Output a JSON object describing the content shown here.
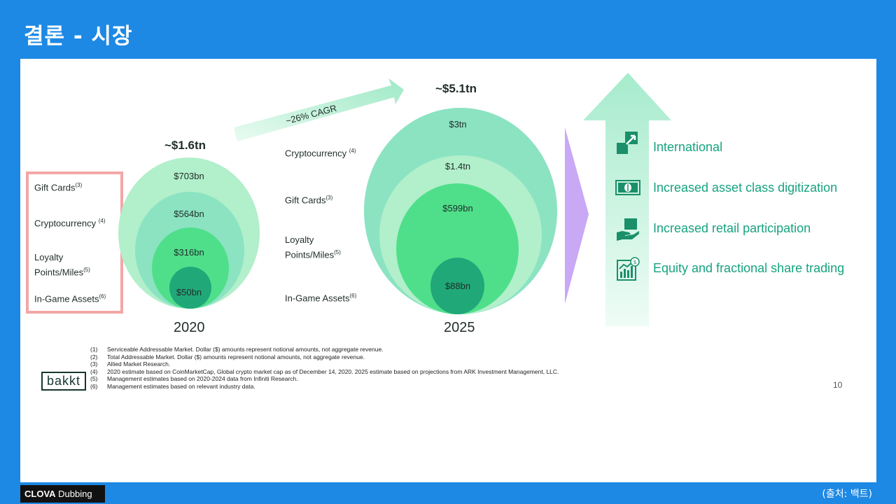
{
  "slide_title": "결론 - 시장",
  "left_box_labels": [
    "Gift Cards",
    "Cryptocurrency",
    "Loyalty Points/Miles",
    "In-Game Assets"
  ],
  "left_box_sups": [
    "(3)",
    "(4)",
    "(5)",
    "(6)"
  ],
  "middle_labels": [
    "Cryptocurrency",
    "Gift Cards",
    "Loyalty Points/Miles",
    "In-Game Assets"
  ],
  "middle_sups": [
    "(4)",
    "(3)",
    "(5)",
    "(6)"
  ],
  "chart_2020": {
    "year": "2020",
    "total": "~$1.6tn",
    "values": [
      "$703bn",
      "$564bn",
      "$316bn",
      "$50bn"
    ]
  },
  "chart_2025": {
    "year": "2025",
    "total": "~$5.1tn",
    "values": [
      "$3tn",
      "$1.4tn",
      "$599bn",
      "$88bn"
    ]
  },
  "cagr_label": "~26% CAGR",
  "drivers": [
    {
      "label": "International",
      "icon": "expand-arrows-icon"
    },
    {
      "label": "Increased asset class digitization",
      "icon": "banknote-icon"
    },
    {
      "label": "Increased retail participation",
      "icon": "hand-holding-icon"
    },
    {
      "label": "Equity and fractional share trading",
      "icon": "stock-chart-icon"
    }
  ],
  "footnotes": [
    {
      "n": "(1)",
      "text": "Serviceable Addressable Market. Dollar ($) amounts represent notional amounts, not aggregate revenue."
    },
    {
      "n": "(2)",
      "text": "Total Addressable Market.  Dollar ($) amounts represent notional amounts, not aggregate revenue."
    },
    {
      "n": "(3)",
      "text": "Allied Market Research."
    },
    {
      "n": "(4)",
      "text": "2020 estimate based on CoinMarketCap, Global crypto market cap as of December 14, 2020. 2025 estimate based on projections from ARK Investment Management, LLC."
    },
    {
      "n": "(5)",
      "text": "Management estimates based on 2020-2024 data from Infiniti Research."
    },
    {
      "n": "(6)",
      "text": "Management estimates based on relevant industry data."
    }
  ],
  "logo": "bakkt",
  "page_number": "10",
  "watermark_brand": "CLOVA",
  "watermark_product": "Dubbing",
  "source_label": "(출처: 백트)",
  "colors": {
    "background": "#1d89e4",
    "accent_green": "#17a37f",
    "highlight_box": "#f4a6a6",
    "chevron": "#c9a8f5"
  },
  "chart_data": [
    {
      "type": "table",
      "title": "",
      "year": "2020",
      "total": "~$1.6tn",
      "categories": [
        "Cryptocurrency",
        "Gift Cards",
        "Loyalty Points/Miles",
        "In-Game Assets"
      ],
      "values": [
        "$703bn",
        "$564bn",
        "$316bn",
        "$50bn"
      ]
    },
    {
      "type": "table",
      "title": "",
      "year": "2025",
      "total": "~$5.1tn",
      "categories": [
        "Cryptocurrency",
        "Gift Cards",
        "Loyalty Points/Miles",
        "In-Game Assets"
      ],
      "values": [
        "$3tn",
        "$1.4tn",
        "$599bn",
        "$88bn"
      ]
    }
  ]
}
